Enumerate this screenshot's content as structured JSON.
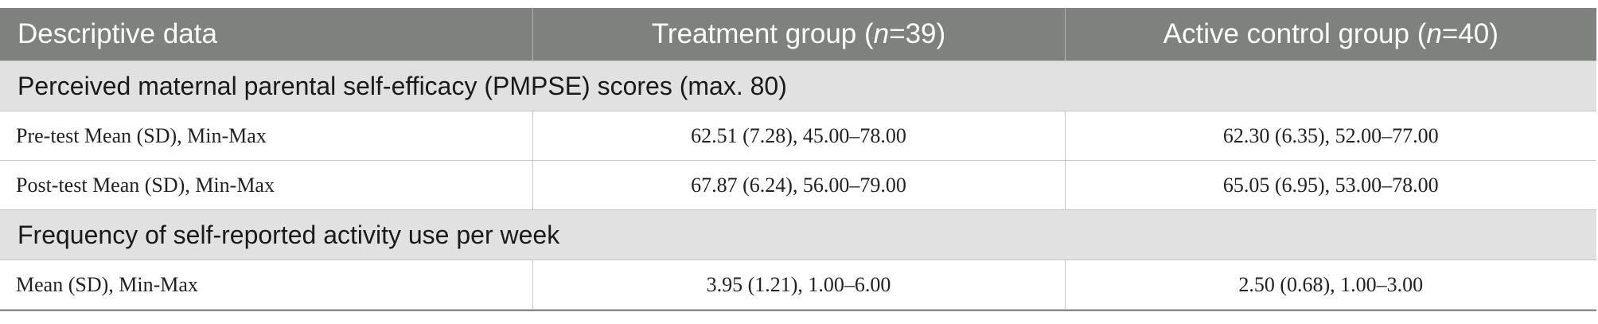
{
  "table": {
    "headers": {
      "col1": "Descriptive data",
      "col2_prefix": "Treatment group (",
      "col2_n": "n",
      "col2_suffix": "=39)",
      "col3_prefix": "Active control group (",
      "col3_n": "n",
      "col3_suffix": "=40)"
    },
    "sections": [
      {
        "title": "Perceived maternal parental self-efficacy (PMPSE) scores (max. 80)",
        "rows": [
          {
            "label": "Pre-test Mean (SD), Min-Max",
            "treatment": "62.51 (7.28), 45.00–78.00",
            "control": "62.30 (6.35), 52.00–77.00"
          },
          {
            "label": "Post-test Mean (SD), Min-Max",
            "treatment": "67.87 (6.24), 56.00–79.00",
            "control": "65.05 (6.95), 53.00–78.00"
          }
        ]
      },
      {
        "title": "Frequency of self-reported activity use per week",
        "rows": [
          {
            "label": "Mean (SD), Min-Max",
            "treatment": "3.95 (1.21), 1.00–6.00",
            "control": "2.50 (0.68), 1.00–3.00"
          }
        ]
      }
    ]
  }
}
